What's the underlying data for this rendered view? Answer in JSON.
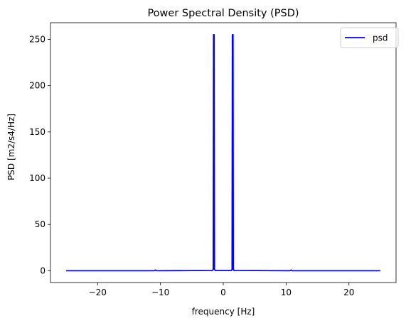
{
  "chart_data": {
    "type": "line",
    "title": "Power Spectral Density (PSD)",
    "xlabel": "frequency [Hz]",
    "ylabel": "PSD [m2/s4/Hz]",
    "xlim": [
      -27.5,
      27.5
    ],
    "ylim": [
      -12.75,
      268
    ],
    "xticks": [
      -20,
      -10,
      0,
      10,
      20
    ],
    "yticks": [
      0,
      50,
      100,
      150,
      200,
      250
    ],
    "grid": false,
    "legend_position": "top-right",
    "series": [
      {
        "name": "psd",
        "color": "#0000ff",
        "x": [
          -25,
          -11.0,
          -10.8,
          -10.6,
          -1.7,
          -1.6,
          -1.55,
          -1.5,
          -1.45,
          -1.4,
          -1.3,
          1.3,
          1.4,
          1.45,
          1.5,
          1.55,
          1.6,
          1.7,
          10.6,
          10.8,
          11.0,
          25
        ],
        "y": [
          0,
          0,
          0.8,
          0,
          0.3,
          1.5,
          255,
          255,
          255,
          1.5,
          0.3,
          0.3,
          1.5,
          255,
          255,
          255,
          1.5,
          0.3,
          0,
          0.8,
          0,
          0
        ]
      }
    ]
  }
}
